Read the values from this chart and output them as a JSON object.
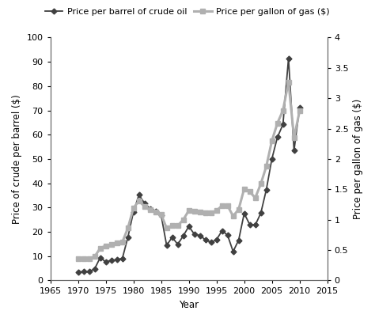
{
  "oil_years": [
    1970,
    1971,
    1972,
    1973,
    1974,
    1975,
    1976,
    1977,
    1978,
    1979,
    1980,
    1981,
    1982,
    1983,
    1984,
    1985,
    1986,
    1987,
    1988,
    1989,
    1990,
    1991,
    1992,
    1993,
    1994,
    1995,
    1996,
    1997,
    1998,
    1999,
    2000,
    2001,
    2002,
    2003,
    2004,
    2005,
    2006,
    2007,
    2008,
    2009,
    2010
  ],
  "oil_prices": [
    3.39,
    3.6,
    3.6,
    4.75,
    9.35,
    7.67,
    8.19,
    8.57,
    9.0,
    17.72,
    28.07,
    35.24,
    31.83,
    29.55,
    28.63,
    26.92,
    14.44,
    17.75,
    14.87,
    18.33,
    22.22,
    19.06,
    18.43,
    16.75,
    15.66,
    16.75,
    20.46,
    18.64,
    11.91,
    16.56,
    27.6,
    23.0,
    22.81,
    27.69,
    37.41,
    50.04,
    58.96,
    64.2,
    91.48,
    53.48,
    71.21
  ],
  "gas_years": [
    1970,
    1971,
    1972,
    1973,
    1974,
    1975,
    1976,
    1977,
    1978,
    1979,
    1980,
    1981,
    1982,
    1983,
    1984,
    1985,
    1986,
    1987,
    1988,
    1989,
    1990,
    1991,
    1992,
    1993,
    1994,
    1995,
    1996,
    1997,
    1998,
    1999,
    2000,
    2001,
    2002,
    2003,
    2004,
    2005,
    2006,
    2007,
    2008,
    2009,
    2010
  ],
  "gas_prices": [
    0.36,
    0.36,
    0.36,
    0.39,
    0.53,
    0.57,
    0.59,
    0.62,
    0.63,
    0.86,
    1.19,
    1.31,
    1.22,
    1.16,
    1.13,
    1.09,
    0.86,
    0.9,
    0.9,
    1.0,
    1.15,
    1.14,
    1.13,
    1.11,
    1.11,
    1.15,
    1.23,
    1.23,
    1.06,
    1.17,
    1.51,
    1.46,
    1.36,
    1.59,
    1.88,
    2.3,
    2.59,
    2.8,
    3.27,
    2.35,
    2.79
  ],
  "xlabel": "Year",
  "ylabel_left": "Price of crude per barrel ($)",
  "ylabel_right": "Price per gallon of gas ($)",
  "xlim": [
    1965,
    2015
  ],
  "ylim_left": [
    0,
    100
  ],
  "ylim_right": [
    0,
    4
  ],
  "xticks": [
    1965,
    1970,
    1975,
    1980,
    1985,
    1990,
    1995,
    2000,
    2005,
    2010,
    2015
  ],
  "yticks_left": [
    0,
    10,
    20,
    30,
    40,
    50,
    60,
    70,
    80,
    90,
    100
  ],
  "yticks_right": [
    0,
    0.5,
    1.0,
    1.5,
    2.0,
    2.5,
    3.0,
    3.5,
    4.0
  ],
  "oil_color": "#404040",
  "gas_color": "#b0b0b0",
  "legend_oil": "Price per barrel of crude oil",
  "legend_gas": "Price per gallon of gas ($)",
  "oil_linewidth": 1.3,
  "gas_linewidth": 2.2,
  "marker_oil": "D",
  "marker_gas": "s",
  "markersize_oil": 3.5,
  "markersize_gas": 4.5,
  "background_color": "#ffffff",
  "tick_fontsize": 8,
  "label_fontsize": 8.5,
  "legend_fontsize": 8
}
